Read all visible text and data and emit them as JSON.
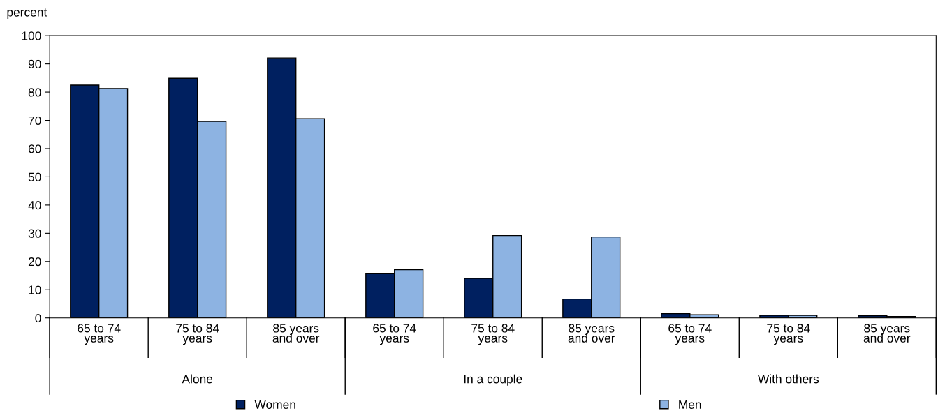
{
  "chart_data": {
    "type": "bar",
    "ylabel": "percent",
    "categories": [
      "65 to 74\nyears",
      "75 to 84\nyears",
      "85 years\nand over",
      "65 to 74\nyears",
      "75 to 84\nyears",
      "85 years\nand over",
      "65 to 74\nyears",
      "75 to 84\nyears",
      "85 years\nand over"
    ],
    "series": [
      {
        "name": "Women",
        "color": "#002060",
        "values": [
          82.5,
          84.9,
          92.1,
          15.7,
          14.0,
          6.7,
          1.5,
          0.9,
          0.8
        ]
      },
      {
        "name": "Men",
        "color": "#8db3e2",
        "values": [
          81.3,
          69.6,
          70.6,
          17.1,
          29.2,
          28.7,
          1.1,
          0.9,
          0.5
        ]
      }
    ],
    "annotations": [
      "Alone",
      "In a couple",
      "With others"
    ],
    "ylim": [
      0,
      100
    ],
    "yticks": [
      0,
      10,
      20,
      30,
      40,
      50,
      60,
      70,
      80,
      90,
      100
    ],
    "grid": false,
    "legend": "bottom"
  }
}
